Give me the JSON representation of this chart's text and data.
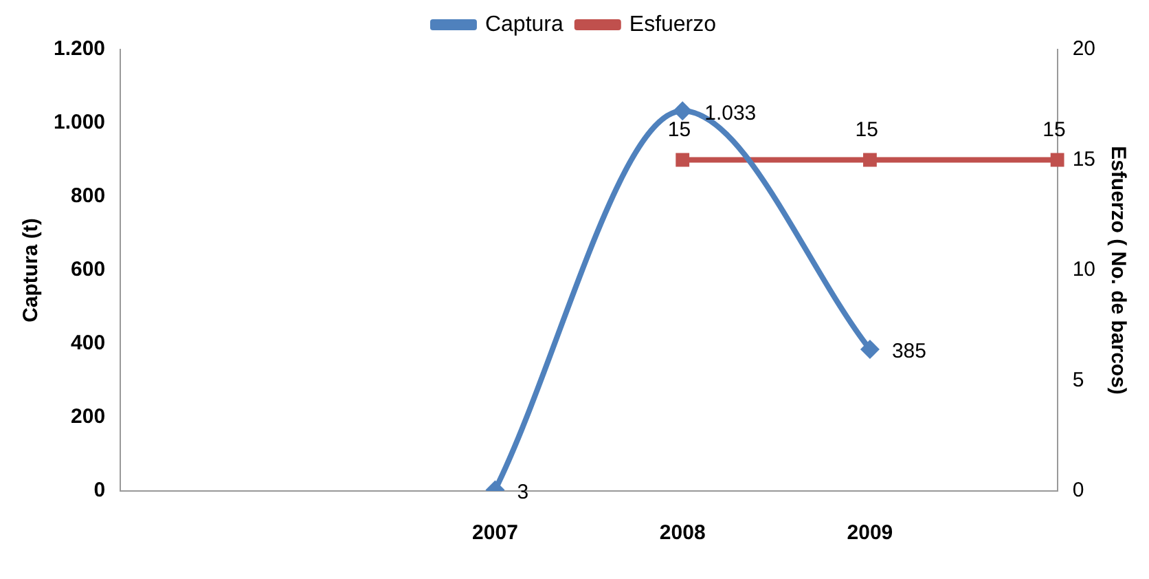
{
  "chart_data": {
    "type": "line",
    "categories": [
      null,
      null,
      "2007",
      "2008",
      "2009",
      null
    ],
    "ylabel": "Captura (t)",
    "y2label": "Esfuerzo ( No. de barcos)",
    "ylim": [
      0,
      1200
    ],
    "yticks": [
      {
        "value": 0,
        "label": "0"
      },
      {
        "value": 200,
        "label": "200"
      },
      {
        "value": 400,
        "label": "400"
      },
      {
        "value": 600,
        "label": "600"
      },
      {
        "value": 800,
        "label": "800"
      },
      {
        "value": 1000,
        "label": "1.000"
      },
      {
        "value": 1200,
        "label": "1.200"
      }
    ],
    "y2lim": [
      0,
      20
    ],
    "y2ticks": [
      0,
      5,
      10,
      15,
      20
    ],
    "series": [
      {
        "name": "Captura",
        "color": "#4f81bd",
        "marker": "diamond",
        "values": [
          null,
          null,
          3,
          1033,
          385,
          null
        ],
        "value_labels": [
          null,
          null,
          "3",
          "1.033",
          "385",
          null
        ]
      },
      {
        "name": "Esfuerzo",
        "color": "#c0504d",
        "marker": "square",
        "axis": "y2",
        "values": [
          null,
          null,
          null,
          15,
          15,
          15
        ],
        "value_labels": [
          null,
          null,
          null,
          "15",
          "15",
          "15"
        ]
      }
    ],
    "legend": "top",
    "grid": false
  }
}
